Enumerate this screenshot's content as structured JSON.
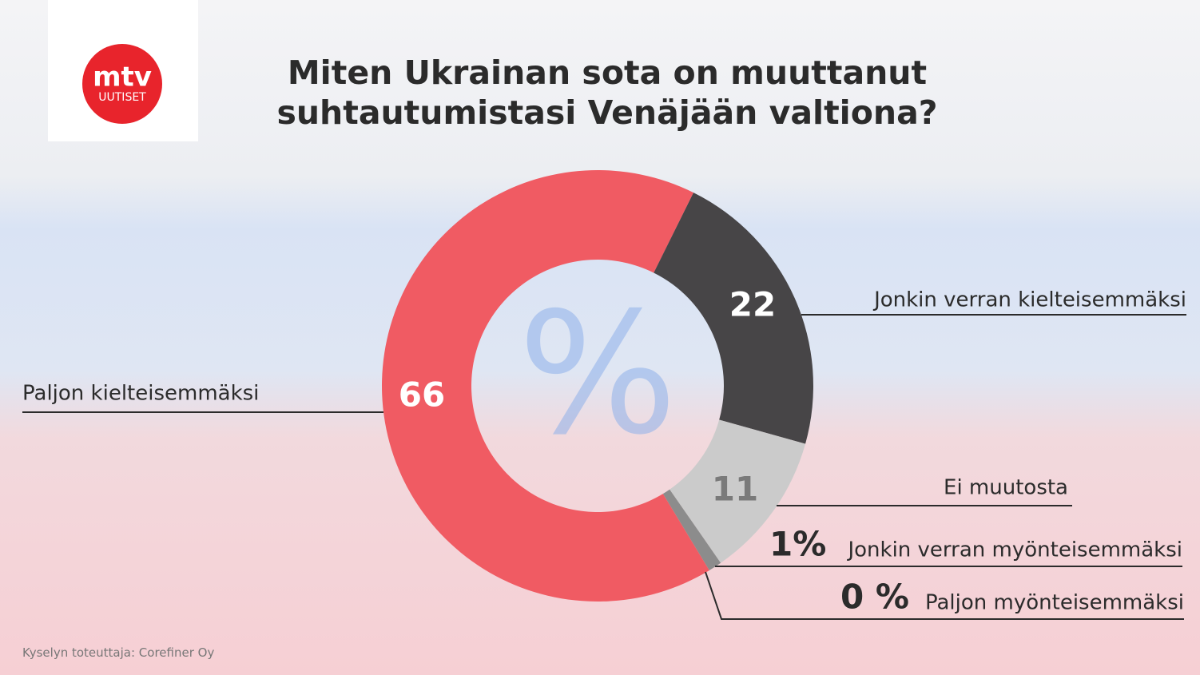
{
  "logo": {
    "top": "mtv",
    "bottom": "UUTISET"
  },
  "chart_data": {
    "type": "donut",
    "title": "Miten Ukrainan sota on muuttanut suhtautumistasi Venäjään valtiona?",
    "center_label": "%",
    "categories": [
      "Paljon kielteisemmäksi",
      "Jonkin verran kielteisemmäksi",
      "Ei muutosta",
      "Jonkin verran myönteisemmäksi",
      "Paljon myönteisemmäksi"
    ],
    "values": [
      66,
      22,
      11,
      1,
      0
    ],
    "value_labels": [
      "66",
      "22",
      "11",
      "1%",
      "0 %"
    ],
    "colors": [
      "#f05b63",
      "#474547",
      "#cbcbcb",
      "#8c8c8c",
      "#555555"
    ],
    "source": "Kyselyn toteuttaja: Corefiner Oy"
  }
}
